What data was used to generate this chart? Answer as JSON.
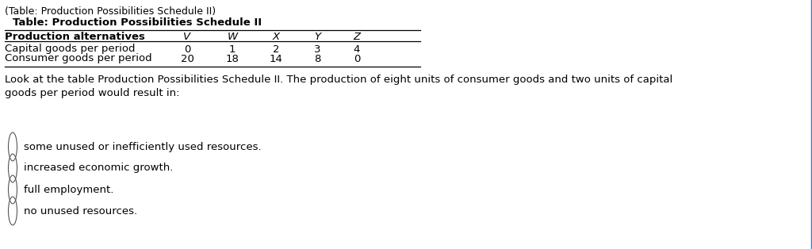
{
  "bg_color": "#ffffff",
  "border_color": "#4472c4",
  "caption": "(Table: Production Possibilities Schedule II)",
  "table_title": "Table: Production Possibilities Schedule II",
  "col_headers": [
    "Production alternatives",
    "V",
    "W",
    "X",
    "Y",
    "Z"
  ],
  "row1_label": "Capital goods per period",
  "row1_values": [
    "0",
    "1",
    "2",
    "3",
    "4"
  ],
  "row2_label": "Consumer goods per period",
  "row2_values": [
    "20",
    "18",
    "14",
    "8",
    "0"
  ],
  "question_text": "Look at the table Production Possibilities Schedule II. The production of eight units of consumer goods and two units of capital\ngoods per period would result in:",
  "choices": [
    "some unused or inefficiently used resources.",
    "increased economic growth.",
    "full employment.",
    "no unused resources."
  ],
  "font_size": 9.5,
  "title_font_size": 9.5,
  "caption_font_size": 9.0
}
